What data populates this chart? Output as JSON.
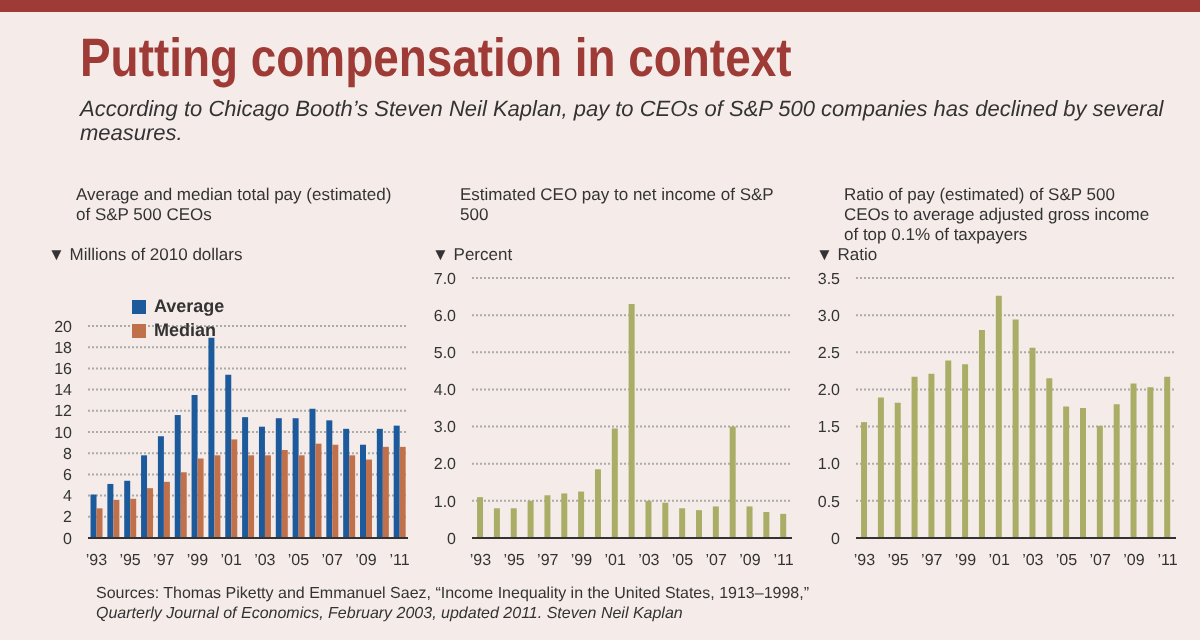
{
  "chart_data": [
    {
      "type": "other",
      "title": "Putting compensation in context",
      "subtitle": "According to Chicago Booth’s Steven Neil Kaplan, pay to CEOs of S&P 500 companies has declined by several measures.",
      "annotations": [
        "Sources: Thomas Piketty and Emmanuel Saez, “Income Inequality in the United States, 1913–1998,”",
        "Quarterly Journal of Economics, February 2003, updated 2011. Steven Neil Kaplan"
      ]
    },
    {
      "type": "bar",
      "title": "Average and median total pay (estimated) of S&P 500 CEOs",
      "ylabel": "▼ Millions of 2010 dollars",
      "categories": [
        "’93",
        null,
        "’95",
        null,
        "’97",
        null,
        "’99",
        null,
        "’01",
        null,
        "’03",
        null,
        "’05",
        null,
        "’07",
        null,
        "’09",
        null,
        "’11"
      ],
      "series": [
        {
          "name": "Average",
          "color": "#1d5a9c",
          "values": [
            4.1,
            5.1,
            5.4,
            7.8,
            9.6,
            11.6,
            13.5,
            18.9,
            15.4,
            11.4,
            10.5,
            11.3,
            11.3,
            12.2,
            11.1,
            10.3,
            8.8,
            10.3,
            10.6
          ]
        },
        {
          "name": "Median",
          "color": "#c0714c",
          "values": [
            2.8,
            3.6,
            3.7,
            4.7,
            5.3,
            6.2,
            7.5,
            7.8,
            9.3,
            7.8,
            7.8,
            8.3,
            7.8,
            8.9,
            8.8,
            7.8,
            7.4,
            8.6,
            8.6
          ]
        }
      ],
      "ylim": [
        0,
        20
      ],
      "yticks": [
        0,
        2,
        4,
        6,
        8,
        10,
        12,
        14,
        16,
        18,
        20
      ],
      "grid": "y",
      "legend": "top left"
    },
    {
      "type": "bar",
      "title": "Estimated CEO pay to net income of S&P 500",
      "ylabel": "▼ Percent",
      "categories": [
        "’93",
        null,
        "’95",
        null,
        "’97",
        null,
        "’99",
        null,
        "’01",
        null,
        "’03",
        null,
        "’05",
        null,
        "’07",
        null,
        "’09",
        null,
        "’11"
      ],
      "color": "#a9ad66",
      "values": [
        1.1,
        0.8,
        0.8,
        1.0,
        1.15,
        1.2,
        1.25,
        1.85,
        2.95,
        6.3,
        1.0,
        0.95,
        0.8,
        0.75,
        0.85,
        3.0,
        0.85,
        0.7,
        0.65
      ],
      "ylim": [
        0,
        7
      ],
      "yticks": [
        0,
        {
          "value": 1,
          "label": "1.0"
        },
        {
          "value": 2,
          "label": "2.0"
        },
        {
          "value": 3,
          "label": "3.0"
        },
        {
          "value": 4,
          "label": "4.0"
        },
        {
          "value": 5,
          "label": "5.0"
        },
        {
          "value": 6,
          "label": "6.0"
        },
        {
          "value": 7,
          "label": "7.0"
        }
      ],
      "grid": "y"
    },
    {
      "type": "bar",
      "title": "Ratio of pay (estimated) of S&P 500 CEOs to average adjusted gross income of top 0.1% of taxpayers",
      "ylabel": "▼ Ratio",
      "categories": [
        "’93",
        null,
        "’95",
        null,
        "’97",
        null,
        "’99",
        null,
        "’01",
        null,
        "’03",
        null,
        "’05",
        null,
        "’07",
        null,
        "’09",
        null,
        "’11"
      ],
      "color": "#a9ad66",
      "values": [
        1.56,
        1.89,
        1.82,
        2.17,
        2.21,
        2.39,
        2.34,
        2.8,
        3.26,
        2.94,
        2.56,
        2.15,
        1.77,
        1.75,
        1.51,
        1.8,
        2.08,
        2.03,
        2.17
      ],
      "ylim": [
        0,
        3.5
      ],
      "yticks": [
        0,
        0.5,
        {
          "value": 1,
          "label": "1.0"
        },
        1.5,
        {
          "value": 2,
          "label": "2.0"
        },
        2.5,
        {
          "value": 3,
          "label": "3.0"
        },
        3.5
      ],
      "grid": "y"
    }
  ]
}
